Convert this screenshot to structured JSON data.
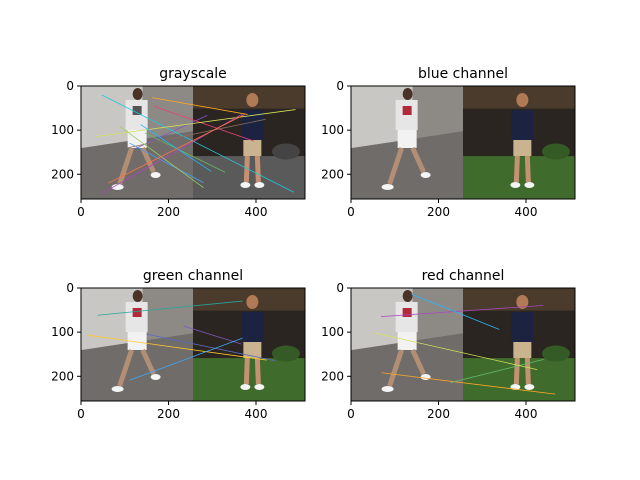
{
  "colors": {
    "background": "#ffffff",
    "axes": "#000000",
    "left_photo_bg": "#8d8a86",
    "left_photo_light": "#c9c7c4",
    "right_photo_bg": "#2a2520",
    "grass": "#3f6b2c",
    "shirt_white": "#e6e6e6",
    "shirt_navy": "#1b2340",
    "shorts_khaki": "#c9b48f"
  },
  "chart_data": [
    {
      "type": "image",
      "title": "grayscale",
      "x_ticks": [
        0,
        200,
        400
      ],
      "y_ticks": [
        0,
        100,
        200
      ],
      "xlim": [
        0,
        512
      ],
      "ylim": [
        256,
        0
      ],
      "match_line_colors": [
        "#7e57c2",
        "#42a5f5",
        "#66bb6a",
        "#ffa726",
        "#ec407a",
        "#26c6da",
        "#d4e157",
        "#8d6e63",
        "#ab47bc",
        "#29b6f6",
        "#9ccc65",
        "#ff7043"
      ]
    },
    {
      "type": "image",
      "title": "blue channel",
      "x_ticks": [
        0,
        200,
        400
      ],
      "y_ticks": [
        0,
        100,
        200
      ],
      "xlim": [
        0,
        512
      ],
      "ylim": [
        256,
        0
      ],
      "match_line_colors": []
    },
    {
      "type": "image",
      "title": "green channel",
      "x_ticks": [
        0,
        200,
        400
      ],
      "y_ticks": [
        0,
        100,
        200
      ],
      "xlim": [
        0,
        512
      ],
      "ylim": [
        256,
        0
      ],
      "match_line_colors": [
        "#5c6bc0",
        "#26a69a",
        "#ffca28",
        "#7e57c2",
        "#42a5f5"
      ]
    },
    {
      "type": "image",
      "title": "red channel",
      "x_ticks": [
        0,
        200,
        400
      ],
      "y_ticks": [
        0,
        100,
        200
      ],
      "xlim": [
        0,
        512
      ],
      "ylim": [
        256,
        0
      ],
      "match_line_colors": [
        "#ab47bc",
        "#ffa726",
        "#66bb6a",
        "#29b6f6",
        "#d4e157"
      ]
    }
  ]
}
